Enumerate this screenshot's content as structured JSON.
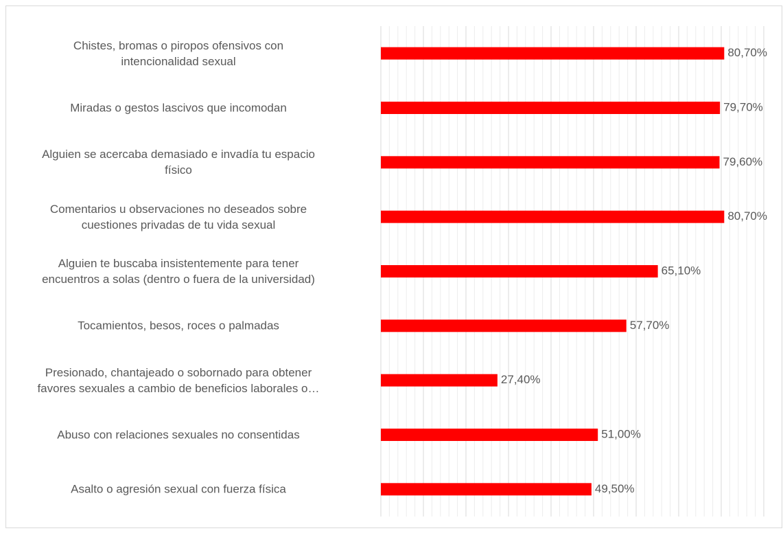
{
  "chart_data": {
    "type": "hbar",
    "categories": [
      "Chistes, bromas o piropos ofensivos con\nintencionalidad sexual",
      "Miradas o gestos lascivos que incomodan",
      "Alguien se acercaba demasiado e invadía tu espacio\nfísico",
      "Comentarios u observaciones no deseados sobre\ncuestiones privadas de tu vida sexual",
      "Alguien te buscaba insistentemente para tener\nencuentros a solas (dentro o fuera de la universidad)",
      "Tocamientos, besos, roces o palmadas",
      "Presionado, chantajeado o sobornado para obtener\nfavores sexuales a cambio de beneficios laborales o…",
      "Abuso con relaciones sexuales no consentidas",
      "Asalto o agresión sexual con fuerza física"
    ],
    "values": [
      80.7,
      79.7,
      79.6,
      80.7,
      65.1,
      57.7,
      27.4,
      51.0,
      49.5
    ],
    "value_labels": [
      "80,70%",
      "79,70%",
      "79,60%",
      "80,70%",
      "65,10%",
      "57,70%",
      "27,40%",
      "51,00%",
      "49,50%"
    ],
    "color": "#ff0000",
    "xlim": [
      0,
      90
    ],
    "xticks": [
      0,
      10,
      20,
      30,
      40,
      50,
      60,
      70,
      80,
      90
    ],
    "grid": true
  }
}
